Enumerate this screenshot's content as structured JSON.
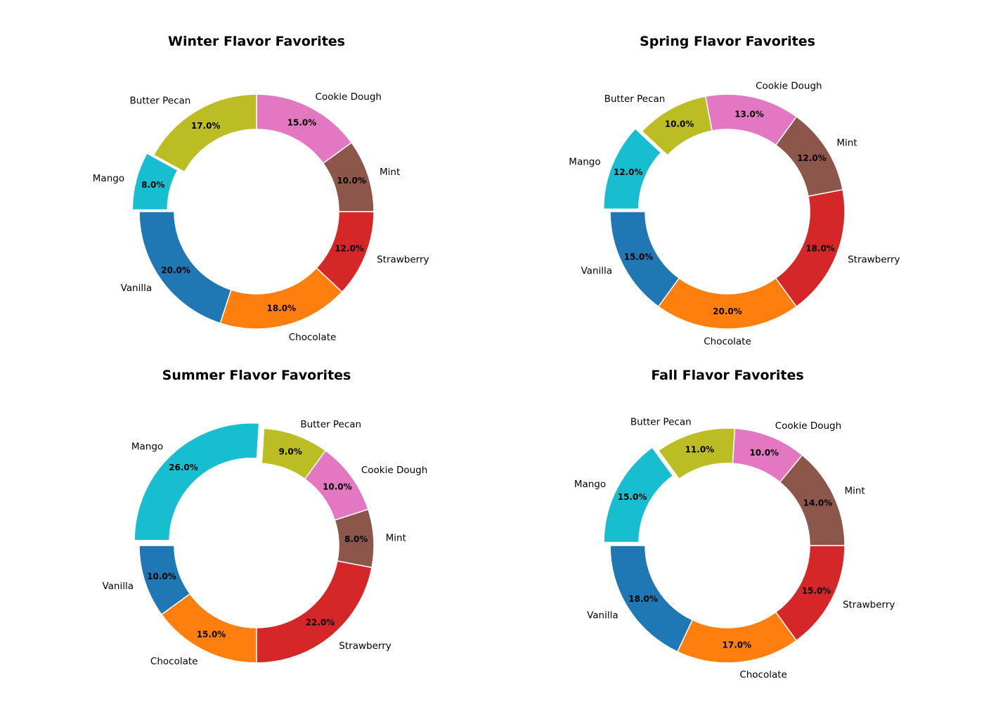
{
  "colors": {
    "Vanilla": "#1f77b4",
    "Chocolate": "#ff7f0e",
    "Strawberry": "#d62728",
    "Mint": "#8c564b",
    "Cookie Dough": "#e377c2",
    "Butter Pecan": "#bcbd22",
    "Mango": "#17becf"
  },
  "chart_data": [
    {
      "type": "pie",
      "variant": "donut",
      "title": "Winter Flavor Favorites",
      "categories": [
        "Vanilla",
        "Chocolate",
        "Strawberry",
        "Mint",
        "Cookie Dough",
        "Butter Pecan",
        "Mango"
      ],
      "values": [
        20.0,
        18.0,
        12.0,
        10.0,
        15.0,
        17.0,
        8.0
      ],
      "value_labels": [
        "20.0%",
        "18.0%",
        "12.0%",
        "10.0%",
        "15.0%",
        "17.0%",
        "8.0%"
      ],
      "exploded": "Mango"
    },
    {
      "type": "pie",
      "variant": "donut",
      "title": "Spring Flavor Favorites",
      "categories": [
        "Vanilla",
        "Chocolate",
        "Strawberry",
        "Mint",
        "Cookie Dough",
        "Butter Pecan",
        "Mango"
      ],
      "values": [
        15.0,
        20.0,
        18.0,
        12.0,
        13.0,
        10.0,
        12.0
      ],
      "value_labels": [
        "15.0%",
        "20.0%",
        "18.0%",
        "12.0%",
        "13.0%",
        "10.0%",
        "12.0%"
      ],
      "exploded": "Mango"
    },
    {
      "type": "pie",
      "variant": "donut",
      "title": "Summer Flavor Favorites",
      "categories": [
        "Vanilla",
        "Chocolate",
        "Strawberry",
        "Mint",
        "Cookie Dough",
        "Butter Pecan",
        "Mango"
      ],
      "values": [
        10.0,
        15.0,
        22.0,
        8.0,
        10.0,
        9.0,
        26.0
      ],
      "value_labels": [
        "10.0%",
        "15.0%",
        "22.0%",
        "8.0%",
        "10.0%",
        "9.0%",
        "26.0%"
      ],
      "exploded": "Mango"
    },
    {
      "type": "pie",
      "variant": "donut",
      "title": "Fall Flavor Favorites",
      "categories": [
        "Vanilla",
        "Chocolate",
        "Strawberry",
        "Mint",
        "Cookie Dough",
        "Butter Pecan",
        "Mango"
      ],
      "values": [
        18.0,
        17.0,
        15.0,
        14.0,
        10.0,
        11.0,
        15.0
      ],
      "value_labels": [
        "18.0%",
        "17.0%",
        "15.0%",
        "14.0%",
        "10.0%",
        "11.0%",
        "15.0%"
      ],
      "exploded": "Mango"
    }
  ]
}
